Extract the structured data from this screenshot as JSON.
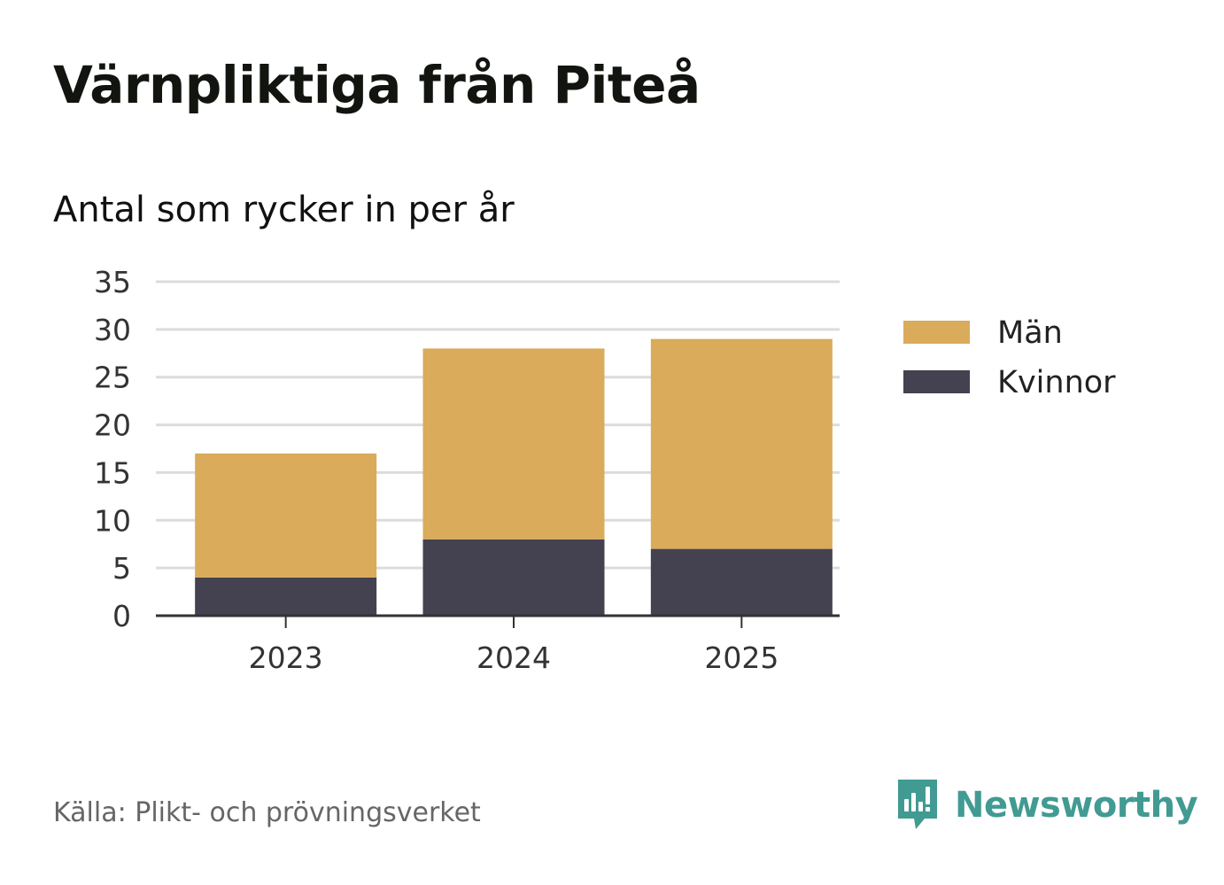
{
  "title": "Värnpliktiga från Piteå",
  "subtitle": "Antal som rycker in per år",
  "source": "Källa: Plikt- och prövningsverket",
  "brand": "Newsworthy",
  "colors": {
    "men": "#d9ab5b",
    "women": "#444150",
    "grid": "#dcdcdc",
    "axis": "#333333",
    "brand": "#419b92"
  },
  "chart_data": {
    "type": "bar",
    "stacked": true,
    "categories": [
      "2023",
      "2024",
      "2025"
    ],
    "series": [
      {
        "name": "Kvinnor",
        "values": [
          4,
          8,
          7
        ],
        "color": "#444150"
      },
      {
        "name": "Män",
        "values": [
          13,
          20,
          22
        ],
        "color": "#d9ab5b"
      }
    ],
    "legend": [
      "Män",
      "Kvinnor"
    ],
    "yticks": [
      "0",
      "5",
      "10",
      "15",
      "20",
      "25",
      "30",
      "35"
    ],
    "ylim": [
      0,
      35
    ],
    "grid": true,
    "legend_position": "right"
  }
}
